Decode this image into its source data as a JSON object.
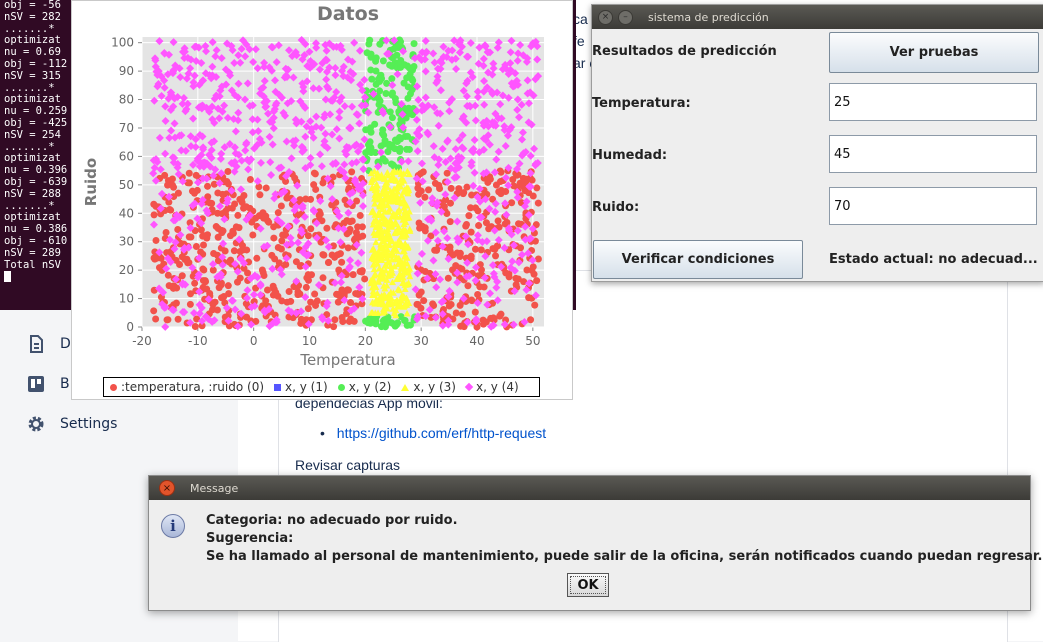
{
  "terminal": {
    "lines": [
      "obj = -56",
      "nSV = 282",
      ".......*",
      "optimizat",
      "nu = 0.69",
      "obj = -112",
      "nSV = 315",
      ".......*",
      "optimizat",
      "nu = 0.259",
      "obj = -425",
      "nSV = 254",
      ".......*",
      "optimizat",
      "nu = 0.396",
      "obj = -639",
      "nSV = 288",
      ".......*",
      "optimizat",
      "nu = 0.386",
      "obj = -610",
      "nSV = 289",
      "Total nSV"
    ]
  },
  "background_page": {
    "sidebar": [
      {
        "icon": "document-icon",
        "label": "D"
      },
      {
        "icon": "board-icon",
        "label": "B"
      },
      {
        "icon": "gear-icon",
        "label": "Settings"
      }
    ],
    "text_fragments": [
      "ca",
      "fe",
      "ar e"
    ],
    "deps_heading": "dependecias App movil:",
    "link": "https://github.com/erf/http-request",
    "revisar": "Revisar capturas"
  },
  "chart_window": {
    "chart_data": {
      "type": "scatter",
      "title": "Datos",
      "xlabel": "Temperatura",
      "ylabel": "Ruido",
      "xlim": [
        -20,
        52
      ],
      "ylim": [
        0,
        102
      ],
      "xticks": [
        -20,
        -10,
        0,
        10,
        20,
        30,
        40,
        50
      ],
      "yticks": [
        0,
        10,
        20,
        30,
        40,
        50,
        60,
        70,
        80,
        90,
        100
      ],
      "grid": true,
      "legend_position": "bottom",
      "series": [
        {
          "name": ":temperatura, :ruido (0)",
          "color": "#f2524a",
          "marker": "circle",
          "regions": [
            {
              "x": [
                -18,
                20
              ],
              "y": [
                0,
                55
              ]
            },
            {
              "x": [
                29,
                51
              ],
              "y": [
                0,
                55
              ]
            }
          ]
        },
        {
          "name": "x, y (1)",
          "color": "#5555ff",
          "marker": "square",
          "regions": []
        },
        {
          "name": "x, y (2)",
          "color": "#55ee55",
          "marker": "circle",
          "regions": [
            {
              "x": [
                20,
                29
              ],
              "y": [
                55,
                101
              ]
            },
            {
              "x": [
                20,
                29
              ],
              "y": [
                0,
                4
              ]
            }
          ]
        },
        {
          "name": "x, y (3)",
          "color": "#ffff33",
          "marker": "triangle",
          "regions": [
            {
              "x": [
                21,
                28
              ],
              "y": [
                4,
                55
              ]
            }
          ]
        },
        {
          "name": "x, y (4)",
          "color": "#ff55ff",
          "marker": "diamond",
          "regions": [
            {
              "x": [
                -18,
                51
              ],
              "y": [
                0,
                101
              ]
            }
          ]
        }
      ]
    }
  },
  "prediction_window": {
    "title": "sistema de predicción",
    "results_label": "Resultados de predicción",
    "ver_pruebas": "Ver pruebas",
    "temp_label": "Temperatura:",
    "temp_value": "25",
    "hum_label": "Humedad:",
    "hum_value": "45",
    "ruido_label": "Ruido:",
    "ruido_value": "70",
    "verificar": "Verificar condiciones",
    "estado": "Estado actual: no adecuad..."
  },
  "message_dialog": {
    "title": "Message",
    "line1": "Categoria: no adecuado por ruido.",
    "line2": "Sugerencia:",
    "line3": "Se ha llamado al personal de mantenimiento, puede salir de la oficina, serán notificados cuando puedan regresar.",
    "ok": "OK"
  }
}
